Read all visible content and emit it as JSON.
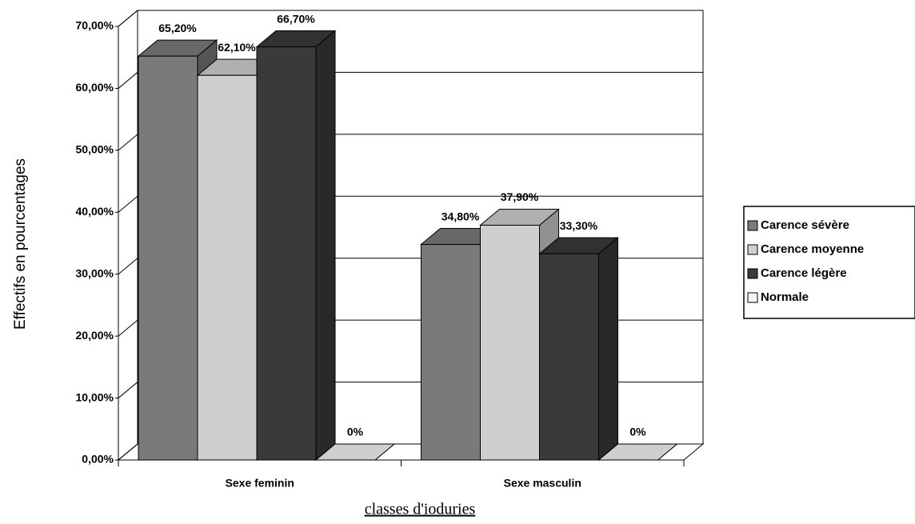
{
  "chart_data": {
    "type": "bar3d",
    "y_label": "Effectifs en pourcentages",
    "x_label": "classes d'ioduries",
    "categories": [
      "Sexe feminin",
      "Sexe masculin"
    ],
    "series": [
      {
        "name": "Carence sévère",
        "color": "#7a7a7a",
        "values": [
          65.2,
          34.8
        ],
        "value_labels": [
          "65,20%",
          "34,80%"
        ]
      },
      {
        "name": "Carence moyenne",
        "color": "#cfcfcf",
        "values": [
          62.1,
          37.9
        ],
        "value_labels": [
          "62,10%",
          "37,90%"
        ]
      },
      {
        "name": "Carence légère",
        "color": "#3a3a3a",
        "values": [
          66.7,
          33.3
        ],
        "value_labels": [
          "66,70%",
          "33,30%"
        ]
      },
      {
        "name": "Normale",
        "color": "#f4f4f4",
        "values": [
          0,
          0
        ],
        "value_labels": [
          "0%",
          "0%"
        ]
      }
    ],
    "ylim": [
      0,
      70
    ],
    "yticks": [
      {
        "value": 0,
        "label": "0,00%"
      },
      {
        "value": 10,
        "label": "10,00%"
      },
      {
        "value": 20,
        "label": "20,00%"
      },
      {
        "value": 30,
        "label": "30,00%"
      },
      {
        "value": 40,
        "label": "40,00%"
      },
      {
        "value": 50,
        "label": "50,00%"
      },
      {
        "value": 60,
        "label": "60,00%"
      },
      {
        "value": 70,
        "label": "70,00%"
      }
    ],
    "grid": true,
    "legend": "right"
  }
}
